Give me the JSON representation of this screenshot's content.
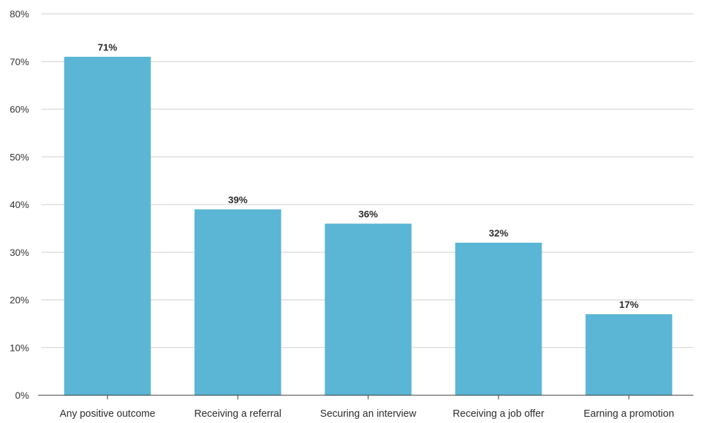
{
  "chart_data": {
    "type": "bar",
    "categories": [
      "Any positive outcome",
      "Receiving a referral",
      "Securing an interview",
      "Receiving a job offer",
      "Earning a promotion"
    ],
    "values": [
      71,
      39,
      36,
      32,
      17
    ],
    "data_labels": [
      "71%",
      "39%",
      "36%",
      "32%",
      "17%"
    ],
    "ylim": [
      0,
      80
    ],
    "yticks": [
      0,
      10,
      20,
      30,
      40,
      50,
      60,
      70,
      80
    ],
    "ytick_labels": [
      "0%",
      "10%",
      "20%",
      "30%",
      "40%",
      "50%",
      "60%",
      "70%",
      "80%"
    ],
    "grid": true,
    "legend": "none",
    "colors": {
      "bar": "#5bb5d4",
      "grid": "#d6d6d6",
      "axis": "#333333",
      "text": "#2b2b2b"
    }
  }
}
